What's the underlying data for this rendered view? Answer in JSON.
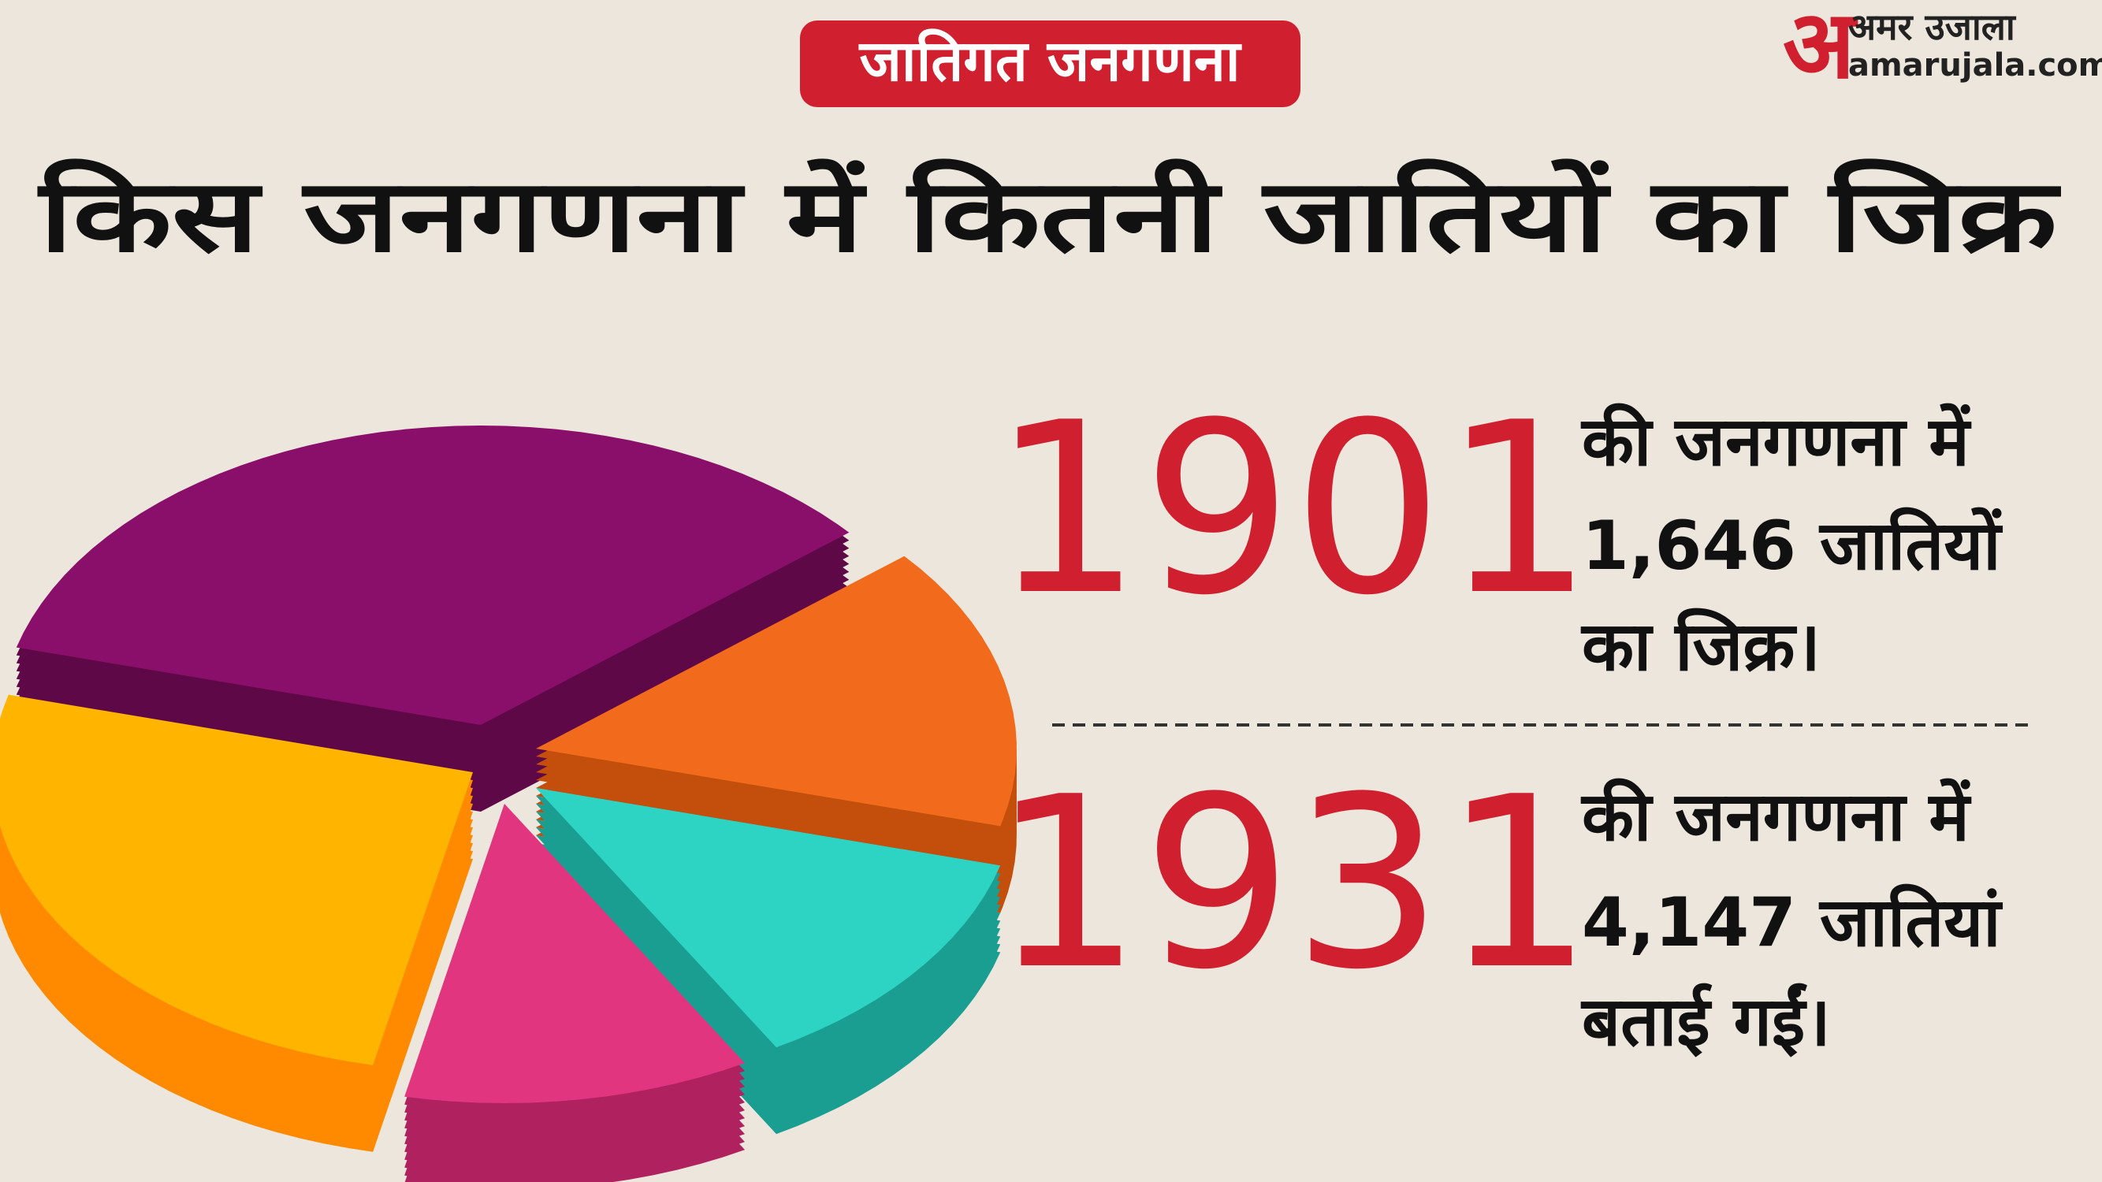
{
  "header": {
    "tag": "जातिगत जनगणना",
    "title": "किस जनगणना में कितनी जातियों का जिक्र"
  },
  "logo": {
    "mark": "अ",
    "name": "अमर उजाला",
    "site": "amarujala.com"
  },
  "entries": [
    {
      "year": "1901",
      "lines": [
        "की जनगणना में",
        "1,646 जातियों",
        "का जिक्र।"
      ]
    },
    {
      "year": "1931",
      "lines": [
        "की जनगणना में",
        "4,147 जातियां",
        "बताई गईं।"
      ]
    }
  ]
}
